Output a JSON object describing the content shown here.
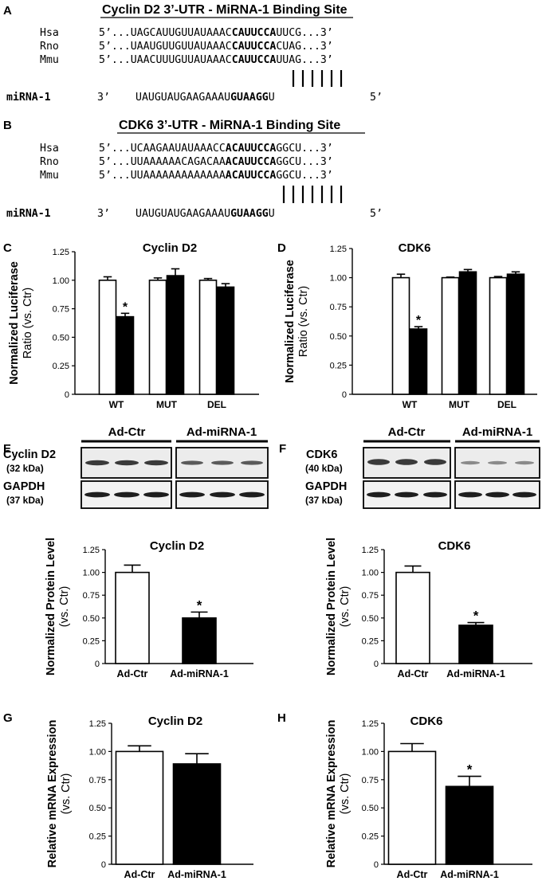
{
  "panels": {
    "A": {
      "letter": "A",
      "title": "Cyclin D2 3’-UTR - MiRNA-1 Binding Site",
      "rows": [
        {
          "species": "Hsa",
          "prefix": "5’...",
          "pre": "UAGCAUUGUUAUAAAC",
          "seed": "CAUUCCA",
          "post": "UUCG",
          "suffix": "...3’"
        },
        {
          "species": "Rno",
          "prefix": "5’...",
          "pre": "UAAUGUUGUUAUAAAC",
          "seed": "CAUUCCA",
          "post": "CUAG",
          "suffix": "...3’"
        },
        {
          "species": "Mmu",
          "prefix": "5’...",
          "pre": "UAACUUUGUUAUAAAC",
          "seed": "CAUUCCA",
          "post": "UUAG",
          "suffix": "...3’"
        }
      ],
      "mirna": {
        "label": "miRNA-1",
        "three": "3’",
        "pre": "UAUGUAUGAAGAAAU",
        "seed": "GUAAGG",
        "post": "U",
        "five": "5’"
      }
    },
    "B": {
      "letter": "B",
      "title": "CDK6 3’-UTR - MiRNA-1 Binding Site",
      "rows": [
        {
          "species": "Hsa",
          "prefix": "5’...",
          "pre": "UCAAGAAUAUAAACC",
          "seed": "ACAUUCCA",
          "post": "GGCU",
          "suffix": "...3’"
        },
        {
          "species": "Rno",
          "prefix": "5’...",
          "pre": "UUAAAAAACAGACAA",
          "seed": "ACAUUCCA",
          "post": "GGCU",
          "suffix": "...3’"
        },
        {
          "species": "Mmu",
          "prefix": "5’...",
          "pre": "UUAAAAAAAAAAAAA",
          "seed": "ACAUUCCA",
          "post": "GGCU",
          "suffix": "...3’"
        }
      ],
      "mirna": {
        "label": "miRNA-1",
        "three": "3’",
        "pre": "UAUGUAUGAAGAAAU",
        "seed": "GUAAGG",
        "post": "U",
        "five": "5’"
      }
    },
    "E": {
      "letter": "E",
      "groups": [
        "Ad-Ctr",
        "Ad-miRNA-1"
      ],
      "bands": [
        {
          "name": "Cyclin D2",
          "kda": "(32 kDa)"
        },
        {
          "name": "GAPDH",
          "kda": "(37 kDa)"
        }
      ]
    },
    "F": {
      "letter": "F",
      "groups": [
        "Ad-Ctr",
        "Ad-miRNA-1"
      ],
      "bands": [
        {
          "name": "CDK6",
          "kda": "(40 kDa)"
        },
        {
          "name": "GAPDH",
          "kda": "(37 kDa)"
        }
      ]
    }
  },
  "chart_data": [
    {
      "id": "C",
      "letter": "C",
      "type": "bar",
      "title": "Cyclin D2",
      "ylabel": [
        "Normalized Luciferase",
        "Ratio (vs. Ctr)"
      ],
      "ylim": [
        0,
        1.25
      ],
      "yticks": [
        "0",
        "0.25",
        "0.50",
        "0.75",
        "1.00",
        "1.25"
      ],
      "categories": [
        "WT",
        "MUT",
        "DEL"
      ],
      "series": [
        {
          "color": "#ffffff",
          "values": [
            1.0,
            1.0,
            1.0
          ],
          "errors": [
            0.03,
            0.02,
            0.015
          ]
        },
        {
          "color": "#000000",
          "values": [
            0.68,
            1.04,
            0.94
          ],
          "errors": [
            0.03,
            0.06,
            0.03
          ]
        }
      ],
      "marks": [
        {
          "category": 0,
          "series": 1,
          "text": "*"
        }
      ]
    },
    {
      "id": "D",
      "letter": "D",
      "type": "bar",
      "title": "CDK6",
      "ylabel": [
        "Normalized Luciferase",
        "Ratio (vs. Ctr)"
      ],
      "ylim": [
        0,
        1.25
      ],
      "yticks": [
        "0",
        "0.25",
        "0.50",
        "0.75",
        "1.00",
        "1.25"
      ],
      "categories": [
        "WT",
        "MUT",
        "DEL"
      ],
      "series": [
        {
          "color": "#ffffff",
          "values": [
            1.0,
            1.0,
            1.0
          ],
          "errors": [
            0.03,
            0.005,
            0.01
          ]
        },
        {
          "color": "#000000",
          "values": [
            0.56,
            1.05,
            1.03
          ],
          "errors": [
            0.02,
            0.02,
            0.02
          ]
        }
      ],
      "marks": [
        {
          "category": 0,
          "series": 1,
          "text": "*"
        }
      ]
    },
    {
      "id": "E",
      "type": "bar",
      "title": "Cyclin D2",
      "ylabel": [
        "Normalized Protein Level",
        "(vs. Ctr)"
      ],
      "ylim": [
        0,
        1.25
      ],
      "yticks": [
        "0",
        "0.25",
        "0.50",
        "0.75",
        "1.00",
        "1.25"
      ],
      "categories": [
        "Ad-Ctr",
        "Ad-miRNA-1"
      ],
      "values": [
        1.0,
        0.5
      ],
      "errors": [
        0.08,
        0.065
      ],
      "colors": [
        "#ffffff",
        "#000000"
      ],
      "marks": [
        {
          "category": 1,
          "text": "*"
        }
      ]
    },
    {
      "id": "F",
      "type": "bar",
      "title": "CDK6",
      "ylabel": [
        "Normalized Protein Level",
        "(vs. Ctr)"
      ],
      "ylim": [
        0,
        1.25
      ],
      "yticks": [
        "0",
        "0.25",
        "0.50",
        "0.75",
        "1.00",
        "1.25"
      ],
      "categories": [
        "Ad-Ctr",
        "Ad-miRNA-1"
      ],
      "values": [
        1.0,
        0.42
      ],
      "errors": [
        0.07,
        0.03
      ],
      "colors": [
        "#ffffff",
        "#000000"
      ],
      "marks": [
        {
          "category": 1,
          "text": "*"
        }
      ]
    },
    {
      "id": "G",
      "letter": "G",
      "type": "bar",
      "title": "Cyclin D2",
      "ylabel": [
        "Relative mRNA Expression",
        "(vs. Ctr)"
      ],
      "ylim": [
        0,
        1.25
      ],
      "yticks": [
        "0",
        "0.25",
        "0.50",
        "0.75",
        "1.00",
        "1.25"
      ],
      "categories": [
        "Ad-Ctr",
        "Ad-miRNA-1"
      ],
      "values": [
        1.0,
        0.89
      ],
      "errors": [
        0.05,
        0.09
      ],
      "colors": [
        "#ffffff",
        "#000000"
      ],
      "marks": []
    },
    {
      "id": "H",
      "letter": "H",
      "type": "bar",
      "title": "CDK6",
      "ylabel": [
        "Relative mRNA Expression",
        "(vs. Ctr)"
      ],
      "ylim": [
        0,
        1.25
      ],
      "yticks": [
        "0",
        "0.25",
        "0.50",
        "0.75",
        "1.00",
        "1.25"
      ],
      "categories": [
        "Ad-Ctr",
        "Ad-miRNA-1"
      ],
      "values": [
        1.0,
        0.69
      ],
      "errors": [
        0.07,
        0.09
      ],
      "colors": [
        "#ffffff",
        "#000000"
      ],
      "marks": [
        {
          "category": 1,
          "text": "*"
        }
      ]
    }
  ]
}
